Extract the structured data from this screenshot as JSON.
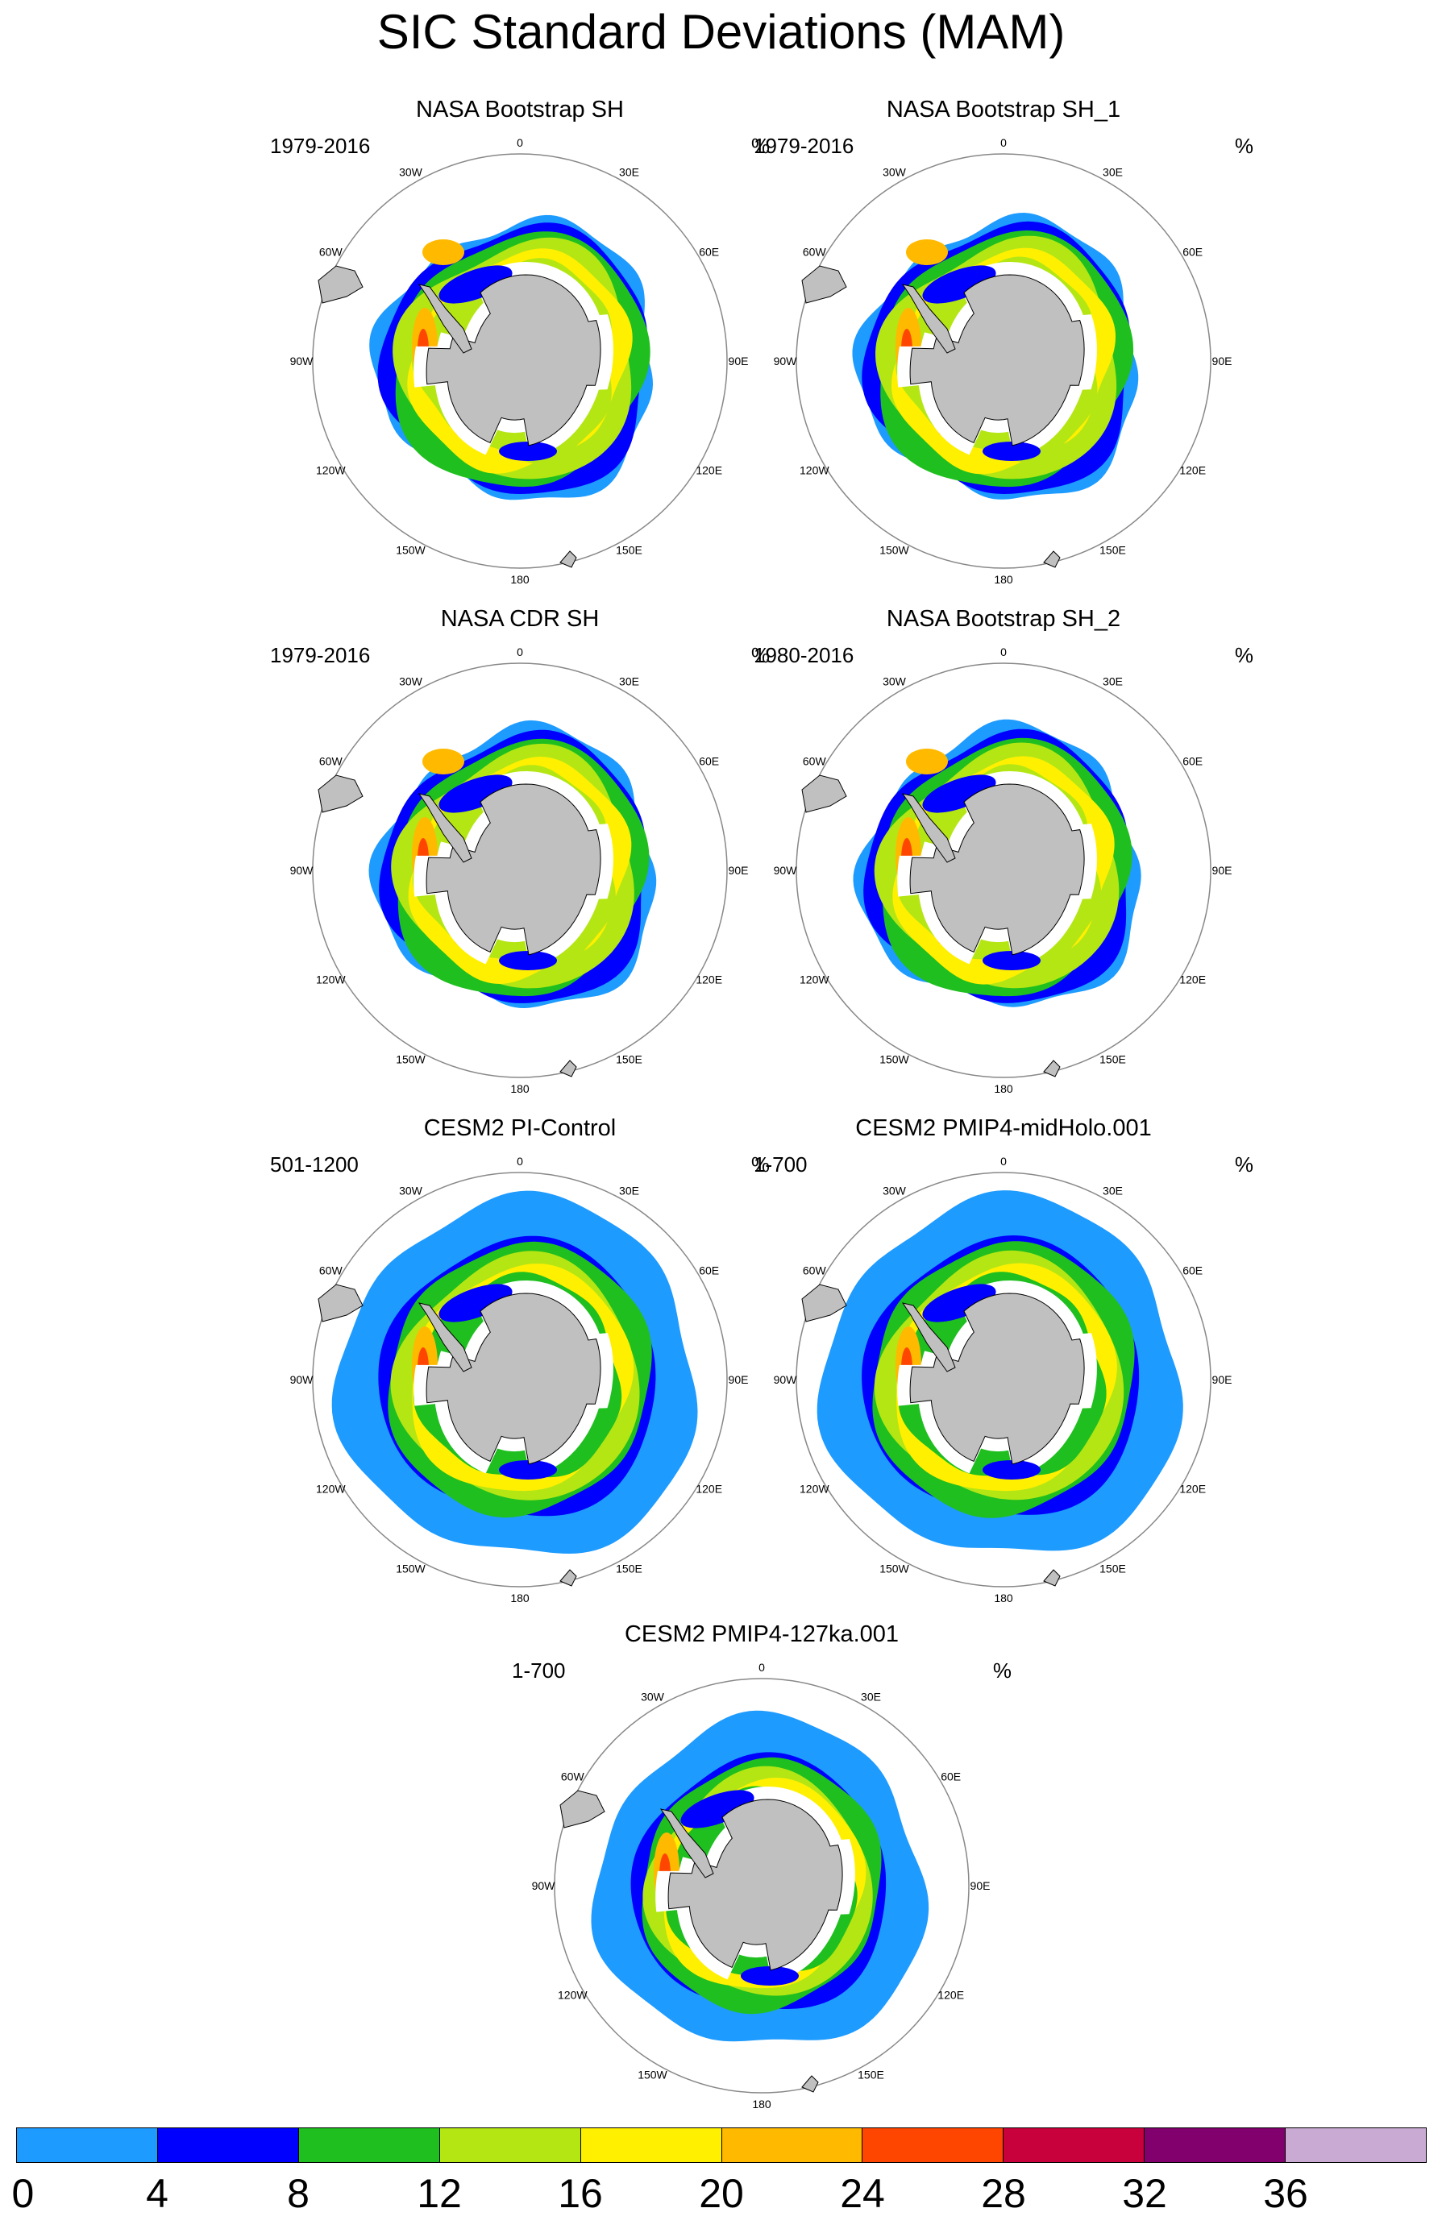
{
  "title": "SIC Standard Deviations (MAM)",
  "longitude_labels": [
    "0",
    "30E",
    "60E",
    "90E",
    "120E",
    "150E",
    "180",
    "150W",
    "120W",
    "90W",
    "60W",
    "30W"
  ],
  "panels": [
    {
      "title": "NASA Bootstrap SH",
      "years": "1979-2016",
      "unit": "%",
      "type": "obs"
    },
    {
      "title": "NASA Bootstrap SH_1",
      "years": "1979-2016",
      "unit": "%",
      "type": "obs"
    },
    {
      "title": "NASA CDR SH",
      "years": "1979-2016",
      "unit": "%",
      "type": "obs"
    },
    {
      "title": "NASA Bootstrap SH_2",
      "years": "1980-2016",
      "unit": "%",
      "type": "obs"
    },
    {
      "title": "CESM2 PI-Control",
      "years": "501-1200",
      "unit": "%",
      "type": "model"
    },
    {
      "title": "CESM2 PMIP4-midHolo.001",
      "years": "1-700",
      "unit": "%",
      "type": "model"
    },
    {
      "title": "CESM2 PMIP4-127ka.001",
      "years": "1-700",
      "unit": "%",
      "type": "model127"
    }
  ],
  "colorbar": {
    "ticks": [
      "0",
      "4",
      "8",
      "12",
      "16",
      "20",
      "24",
      "28",
      "32",
      "36"
    ],
    "colors": [
      "#1e9bff",
      "#0000ff",
      "#1fbf1f",
      "#b4e614",
      "#fff000",
      "#ffba00",
      "#ff4600",
      "#c8003c",
      "#82006e",
      "#c8aad2"
    ]
  },
  "colors": {
    "land": "#c0c0c0",
    "coast": "#000000",
    "ice_shelf": "#ffffff"
  }
}
